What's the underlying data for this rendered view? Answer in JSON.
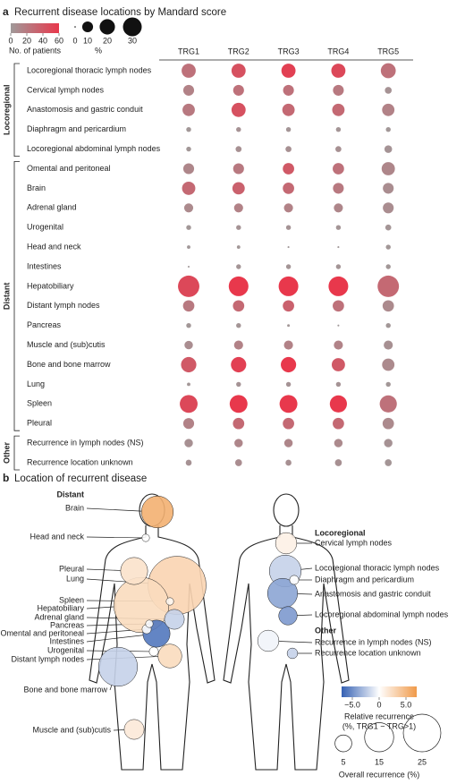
{
  "chart_data": [
    {
      "type": "bubble-matrix",
      "panel": "a",
      "title": "Recurrent disease locations by Mandard score",
      "columns": [
        "TRG1",
        "TRG2",
        "TRG3",
        "TRG4",
        "TRG5"
      ],
      "groups": [
        {
          "name": "Locoregional",
          "rows": [
            {
              "label": "Locoregional thoracic lymph nodes",
              "size": [
                17,
                17,
                17,
                17,
                19
              ],
              "patients": [
                25,
                45,
                55,
                50,
                25
              ]
            },
            {
              "label": "Cervical lymph nodes",
              "size": [
                10,
                10,
                10,
                10,
                4
              ],
              "patients": [
                15,
                25,
                25,
                20,
                5
              ]
            },
            {
              "label": "Anastomosis and gastric conduit",
              "size": [
                13,
                17,
                13,
                13,
                13
              ],
              "patients": [
                20,
                45,
                30,
                30,
                15
              ]
            },
            {
              "label": "Diaphragm and pericardium",
              "size": [
                2,
                2,
                2,
                2,
                2
              ],
              "patients": [
                2,
                5,
                3,
                3,
                2
              ]
            },
            {
              "label": "Locoregional abdominal lymph nodes",
              "size": [
                2,
                3,
                3,
                3,
                5
              ],
              "patients": [
                2,
                6,
                6,
                6,
                4
              ]
            }
          ]
        },
        {
          "name": "Distant",
          "rows": [
            {
              "label": "Omental and peritoneal",
              "size": [
                10,
                10,
                11,
                11,
                15
              ],
              "patients": [
                12,
                20,
                40,
                25,
                12
              ]
            },
            {
              "label": "Brain",
              "size": [
                15,
                13,
                11,
                10,
                10
              ],
              "patients": [
                30,
                35,
                30,
                20,
                8
              ]
            },
            {
              "label": "Adrenal gland",
              "size": [
                7,
                7,
                7,
                7,
                10
              ],
              "patients": [
                10,
                15,
                15,
                12,
                8
              ]
            },
            {
              "label": "Urogenital",
              "size": [
                2,
                2,
                2,
                2,
                3
              ],
              "patients": [
                2,
                4,
                4,
                3,
                3
              ]
            },
            {
              "label": "Head and neck",
              "size": [
                1,
                1,
                0.3,
                0.3,
                2
              ],
              "patients": [
                1,
                2,
                1,
                1,
                2
              ]
            },
            {
              "label": "Intestines",
              "size": [
                0.3,
                2,
                2,
                2,
                2
              ],
              "patients": [
                1,
                3,
                3,
                3,
                2
              ]
            },
            {
              "label": "Hepatobiliary",
              "size": [
                39,
                33,
                33,
                33,
                39
              ],
              "patients": [
                50,
                60,
                70,
                60,
                30
              ]
            },
            {
              "label": "Distant lymph nodes",
              "size": [
                11,
                11,
                11,
                11,
                11
              ],
              "patients": [
                20,
                30,
                35,
                25,
                10
              ]
            },
            {
              "label": "Pancreas",
              "size": [
                2,
                2,
                0.6,
                0.3,
                2
              ],
              "patients": [
                2,
                3,
                2,
                1,
                2
              ]
            },
            {
              "label": "Muscle and (sub)cutis",
              "size": [
                6,
                7,
                7,
                7,
                7
              ],
              "patients": [
                8,
                15,
                15,
                14,
                6
              ]
            },
            {
              "label": "Bone and bone marrow",
              "size": [
                20,
                20,
                20,
                15,
                13
              ],
              "patients": [
                40,
                55,
                70,
                40,
                10
              ]
            },
            {
              "label": "Lung",
              "size": [
                1,
                2,
                2,
                2,
                2
              ],
              "patients": [
                2,
                4,
                4,
                4,
                2
              ]
            },
            {
              "label": "Spleen",
              "size": [
                27,
                27,
                27,
                25,
                25
              ],
              "patients": [
                50,
                60,
                70,
                60,
                25
              ]
            },
            {
              "label": "Pleural",
              "size": [
                10,
                11,
                11,
                11,
                11
              ],
              "patients": [
                15,
                30,
                30,
                30,
                10
              ]
            }
          ]
        },
        {
          "name": "Other",
          "rows": [
            {
              "label": "Recurrence in lymph nodes (NS)",
              "size": [
                6,
                6,
                6,
                6,
                6
              ],
              "patients": [
                6,
                12,
                12,
                10,
                5
              ]
            },
            {
              "label": "Recurrence location unknown",
              "size": [
                3,
                4,
                3,
                4,
                4
              ],
              "patients": [
                5,
                8,
                6,
                6,
                3
              ]
            }
          ]
        }
      ],
      "color_legend": {
        "label": "No. of patients",
        "ticks": [
          0,
          20,
          40,
          60
        ],
        "lim": [
          0,
          60
        ],
        "colors": [
          "#a09a9a",
          "#e8384c"
        ]
      },
      "size_legend": {
        "label": "%",
        "ticks": [
          0,
          10,
          20,
          30
        ],
        "lim": [
          0,
          30
        ]
      }
    },
    {
      "type": "body-bubble",
      "panel": "b",
      "title": "Location of recurrent disease",
      "bodies": [
        {
          "groups": [
            {
              "name": "Distant",
              "locations": [
                {
                  "label": "Brain",
                  "relative": 5.5,
                  "overall": 18
                },
                {
                  "label": "Head and neck",
                  "relative": 0,
                  "overall": 1
                },
                {
                  "label": "Pleural",
                  "relative": 2,
                  "overall": 13
                },
                {
                  "label": "Lung",
                  "relative": 3,
                  "overall": 60
                },
                {
                  "label": "Spleen",
                  "relative": 0.5,
                  "overall": 1
                },
                {
                  "label": "Hepatobiliary",
                  "relative": 2.5,
                  "overall": 54
                },
                {
                  "label": "Adrenal gland",
                  "relative": -2,
                  "overall": 7
                },
                {
                  "label": "Pancreas",
                  "relative": 0,
                  "overall": 1
                },
                {
                  "label": "Omental and peritoneal",
                  "relative": 0,
                  "overall": 1.5
                },
                {
                  "label": "Intestines",
                  "relative": -6,
                  "overall": 13
                },
                {
                  "label": "Urogenital",
                  "relative": 0,
                  "overall": 1.5
                },
                {
                  "label": "Distant lymph nodes",
                  "relative": 2.5,
                  "overall": 10
                },
                {
                  "label": "Bone and bone marrow",
                  "relative": -2,
                  "overall": 27
                },
                {
                  "label": "Muscle and (sub)cutis",
                  "relative": 1.5,
                  "overall": 7
                }
              ]
            }
          ]
        },
        {
          "groups": [
            {
              "name": "Locoregional",
              "locations": [
                {
                  "label": "Cervical lymph nodes",
                  "relative": 1,
                  "overall": 8
                },
                {
                  "label": "Locoregional thoracic lymph nodes",
                  "relative": -2,
                  "overall": 18
                },
                {
                  "label": "Diaphragm and pericardium",
                  "relative": 0,
                  "overall": 1.5
                },
                {
                  "label": "Anastomosis and gastric conduit",
                  "relative": -4,
                  "overall": 16
                },
                {
                  "label": "Locoregional abdominal lymph nodes",
                  "relative": -4.5,
                  "overall": 6
                }
              ]
            },
            {
              "name": "Other",
              "locations": [
                {
                  "label": "Recurrence in lymph nodes (NS)",
                  "relative": -0.5,
                  "overall": 8
                },
                {
                  "label": "Recurrence location unknown",
                  "relative": -2,
                  "overall": 2
                }
              ]
            }
          ]
        }
      ],
      "color_legend": {
        "label": [
          "Relative recurrence",
          "(%, TRG1 − TRG>1)"
        ],
        "ticks": [
          {
            "value": -5,
            "label": "−5.0"
          },
          0,
          {
            "value": 5,
            "label": "5.0"
          }
        ],
        "lim": [
          -7,
          7
        ],
        "colors": [
          "#3561b3",
          "#ffffff",
          "#f09a4a"
        ]
      },
      "size_legend": {
        "label": "Overall recurrence (%)",
        "ticks": [
          5,
          15,
          25
        ],
        "lim": [
          0,
          25
        ]
      }
    }
  ]
}
